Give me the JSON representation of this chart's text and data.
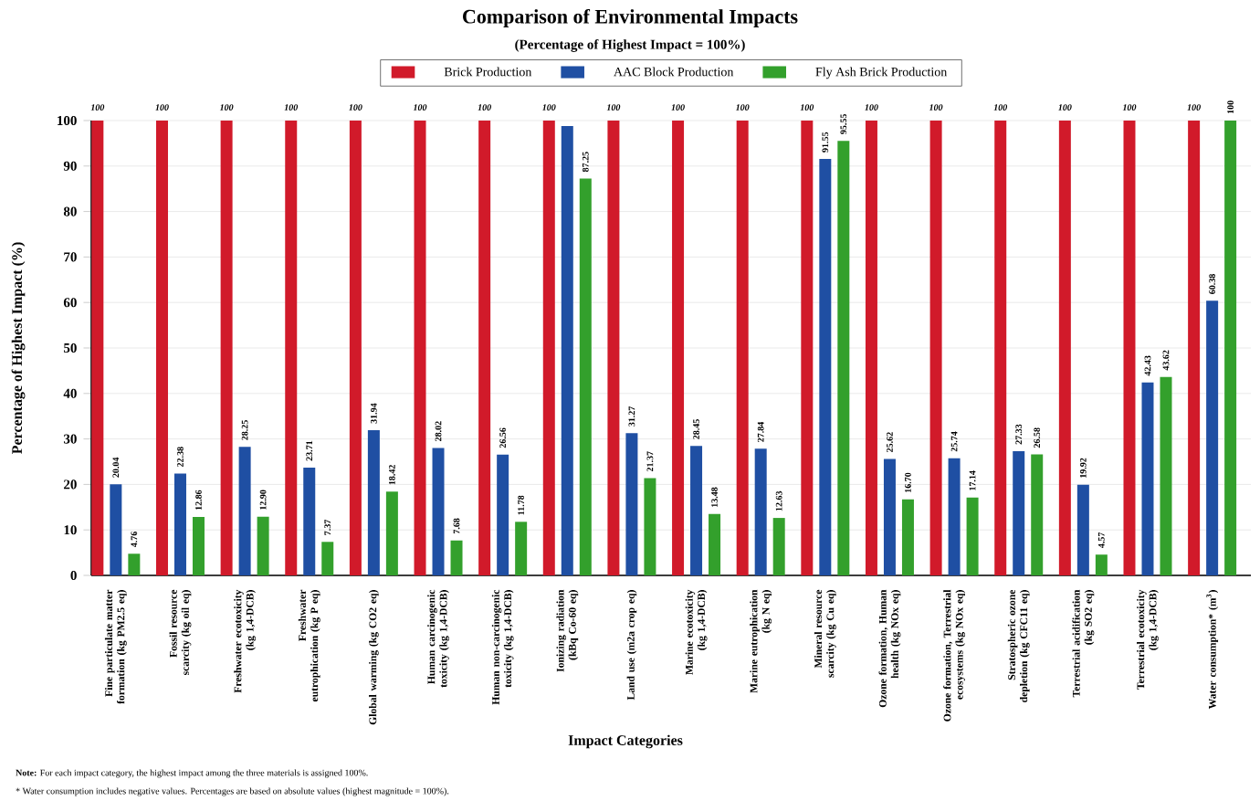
{
  "chart_data": {
    "type": "bar",
    "title": "Comparison of Environmental Impacts",
    "subtitle": "(Percentage of Highest Impact = 100%)",
    "xlabel": "Impact Categories",
    "ylabel": "Percentage of Highest Impact (%)",
    "categories": [
      "Fine particulate matter formation (kg PM2.5 eq)",
      "Fossil resource scarcity (kg oil eq)",
      "Freshwater ecotoxicity (kg 1,4-DCB)",
      "Freshwater eutrophication (kg P eq)",
      "Global warming (kg CO2 eq)",
      "Human carcinogenic toxicity (kg 1,4-DCB)",
      "Human non-carcinogenic toxicity (kg 1,4-DCB)",
      "Ionizing radiation (kBq Co-60 eq)",
      "Land use (m2a crop eq)",
      "Marine ecotoxicity (kg 1,4-DCB)",
      "Marine eutrophication (kg N eq)",
      "Mineral resource scarcity (kg Cu eq)",
      "Ozone formation, Human health (kg NOx eq)",
      "Ozone formation, Terrestrial ecosystems (kg NOx eq)",
      "Stratospheric ozone depletion (kg CFC11 eq)",
      "Terrestrial acidification (kg SO2 eq)",
      "Terrestrial ecotoxicity (kg 1,4-DCB)",
      "Water consumption* (m$^{3}$)"
    ],
    "series": [
      {
        "name": "Brick Production",
        "color": "#d11a2a",
        "values": [
          100,
          100,
          100,
          100,
          100,
          100,
          100,
          100,
          100,
          100,
          100,
          100,
          100,
          100,
          100,
          100,
          100,
          100
        ],
        "value_labels": [
          "100",
          "100",
          "100",
          "100",
          "100",
          "100",
          "100",
          "100",
          "100",
          "100",
          "100",
          "100",
          "100",
          "100",
          "100",
          "100",
          "100",
          "100"
        ]
      },
      {
        "name": "AAC Block Production",
        "color": "#1f4fa3",
        "values": [
          20.04,
          22.38,
          28.25,
          23.71,
          31.94,
          28.02,
          26.56,
          98.8,
          31.27,
          28.45,
          27.84,
          91.55,
          25.62,
          25.74,
          27.33,
          19.92,
          42.43,
          60.38
        ],
        "value_labels": [
          "20.04",
          "22.38",
          "28.25",
          "23.71",
          "31.94",
          "28.02",
          "26.56",
          null,
          "31.27",
          "28.45",
          "27.84",
          "91.55",
          "25.62",
          "25.74",
          "27.33",
          "19.92",
          "42.43",
          "60.38"
        ]
      },
      {
        "name": "Fly Ash Brick Production",
        "color": "#33a02c",
        "values": [
          4.76,
          12.86,
          12.9,
          7.37,
          18.42,
          7.68,
          11.78,
          87.25,
          21.37,
          13.48,
          12.63,
          95.55,
          16.7,
          17.14,
          26.58,
          4.57,
          43.62,
          100
        ],
        "value_labels": [
          "4.76",
          "12.86",
          "12.90",
          "7.37",
          "18.42",
          "7.68",
          "11.78",
          "87.25",
          "21.37",
          "13.48",
          "12.63",
          "95.55",
          "16.70",
          "17.14",
          "26.58",
          "4.57",
          "43.62",
          "100"
        ]
      }
    ],
    "ylim": [
      0,
      100
    ],
    "yticks": [
      0,
      10,
      20,
      30,
      40,
      50,
      60,
      70,
      80,
      90,
      100
    ],
    "grid": "y",
    "legend": "top",
    "annotations": [
      "**Note:** For each impact category, the highest impact among the three materials is assigned 100%.",
      "* Water consumption includes negative values. Percentages are based on absolute values (highest magnitude = 100%)."
    ]
  }
}
